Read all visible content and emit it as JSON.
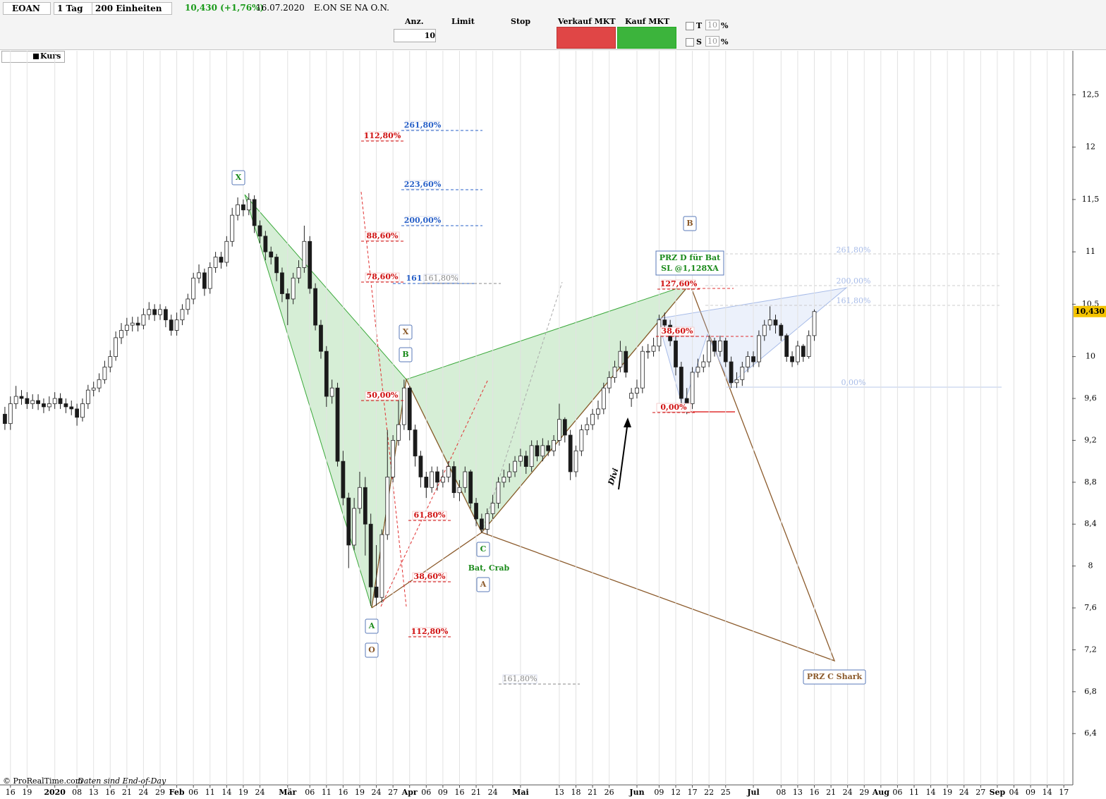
{
  "toolbar": {
    "symbol": "EOAN",
    "interval": "1 Tag",
    "units": "200 Einheiten",
    "quote": "10,430 (+1,76%)",
    "date": "16.07.2020",
    "name": "E.ON SE NA O.N.",
    "qty_label": "Anz.",
    "qty": "10",
    "limit": "Limit",
    "stop": "Stop",
    "sell": "Verkauf MKT",
    "buy": "Kauf MKT",
    "t": "T",
    "s": "S",
    "t_pct": "10",
    "s_pct": "10",
    "pct": "%"
  },
  "legend": "Kurs",
  "footer": {
    "copyright": "© ProRealTime.com",
    "note": "Daten sind End-of-Day"
  },
  "chart_data": {
    "type": "candlestick",
    "categories": [
      null,
      "16",
      null,
      null,
      "19",
      null,
      null,
      null,
      null,
      "2020",
      null,
      null,
      null,
      "08",
      null,
      null,
      "13",
      null,
      null,
      "16",
      null,
      null,
      "21",
      null,
      null,
      "24",
      null,
      null,
      "29",
      null,
      null,
      "Feb",
      null,
      null,
      "06",
      null,
      null,
      "11",
      null,
      null,
      "14",
      null,
      null,
      "19",
      null,
      null,
      "24",
      null,
      null,
      null,
      null,
      "Mär",
      null,
      null,
      null,
      "06",
      null,
      null,
      "11",
      null,
      null,
      "16",
      null,
      null,
      "19",
      null,
      null,
      "24",
      null,
      null,
      "27",
      null,
      null,
      "Apr",
      null,
      null,
      "06",
      null,
      null,
      "09",
      null,
      null,
      "16",
      null,
      null,
      "21",
      null,
      null,
      "24",
      null,
      null,
      null,
      null,
      "Mai",
      null,
      null,
      null,
      null,
      null,
      null,
      "13",
      null,
      null,
      "18",
      null,
      null,
      "21",
      null,
      null,
      "26",
      null,
      null,
      null,
      null,
      "Jun",
      null,
      null,
      null,
      "09",
      null,
      null,
      "12",
      null,
      null,
      "17",
      null,
      null,
      "22",
      null,
      null,
      "25",
      null,
      null,
      null,
      null,
      "Jul",
      null,
      null,
      null,
      null,
      "08",
      null,
      null,
      "13",
      null,
      null,
      "16",
      null,
      null,
      "21",
      null,
      null,
      "24",
      null,
      null,
      "29",
      null,
      null,
      "Aug",
      null,
      null,
      "06",
      null,
      null,
      "11",
      null,
      null,
      "14",
      null,
      null,
      "19",
      null,
      null,
      "24",
      null,
      null,
      "27",
      null,
      null,
      "Sep",
      null,
      null,
      "04",
      null,
      null,
      "09",
      null,
      null,
      "14",
      null,
      null,
      "17",
      null
    ],
    "open": [
      9.45,
      9.36,
      9.55,
      9.62,
      9.6,
      9.55,
      9.58,
      9.55,
      9.52,
      9.55,
      9.6,
      9.55,
      9.52,
      9.5,
      9.42,
      9.55,
      9.68,
      9.7,
      9.78,
      9.9,
      10.0,
      10.18,
      10.25,
      10.3,
      10.32,
      10.3,
      10.4,
      10.45,
      10.4,
      10.45,
      10.35,
      10.25,
      10.35,
      10.45,
      10.55,
      10.75,
      10.8,
      10.65,
      10.85,
      10.95,
      10.9,
      11.1,
      11.35,
      11.45,
      11.4,
      11.5,
      11.25,
      11.15,
      11.0,
      10.95,
      10.8,
      10.6,
      10.55,
      10.75,
      10.85,
      11.1,
      10.65,
      10.3,
      10.05,
      9.62,
      9.7,
      9.0,
      8.65,
      8.2,
      8.55,
      8.75,
      8.4,
      7.8,
      7.7,
      8.3,
      8.85,
      9.2,
      9.35,
      9.7,
      9.3,
      9.05,
      8.85,
      8.75,
      8.9,
      8.8,
      8.85,
      8.95,
      8.7,
      8.75,
      8.9,
      8.6,
      8.45,
      8.35,
      8.5,
      8.6,
      8.8,
      8.85,
      8.9,
      9.0,
      9.05,
      8.95,
      9.15,
      9.05,
      9.15,
      9.1,
      9.2,
      9.4,
      9.25,
      8.9,
      9.1,
      9.3,
      9.35,
      9.45,
      9.5,
      9.7,
      9.8,
      9.9,
      10.05,
      9.6,
      9.65,
      9.7,
      10.05,
      10.05,
      10.1,
      10.35,
      10.3,
      10.15,
      9.9,
      9.6,
      9.55,
      9.85,
      9.9,
      9.95,
      10.15,
      10.05,
      10.15,
      9.95,
      9.75,
      9.78,
      9.9,
      10.0,
      9.95,
      10.2,
      10.3,
      10.35,
      10.3,
      10.2,
      10.0,
      9.95,
      10.1,
      10.0,
      10.2,
      null,
      null,
      null,
      null,
      null,
      null,
      null,
      null,
      null,
      null,
      null,
      null,
      null,
      null,
      null,
      null,
      null,
      null,
      null,
      null,
      null,
      null,
      null,
      null,
      null,
      null,
      null,
      null,
      null,
      null,
      null,
      null,
      null,
      null,
      null,
      null,
      null,
      null,
      null,
      null,
      null,
      null,
      null,
      null,
      null,
      null
    ],
    "high": [
      9.52,
      9.62,
      9.72,
      9.68,
      9.66,
      9.64,
      9.64,
      9.6,
      9.62,
      9.66,
      9.65,
      9.6,
      9.58,
      9.55,
      9.6,
      9.73,
      9.76,
      9.84,
      9.96,
      10.06,
      10.24,
      10.32,
      10.37,
      10.38,
      10.38,
      10.46,
      10.52,
      10.5,
      10.5,
      10.48,
      10.4,
      10.42,
      10.5,
      10.6,
      10.8,
      10.88,
      10.84,
      10.9,
      11.0,
      11.0,
      11.15,
      11.42,
      11.52,
      11.5,
      11.56,
      11.54,
      11.3,
      11.2,
      11.05,
      10.98,
      10.85,
      10.65,
      10.8,
      10.92,
      11.25,
      11.15,
      10.7,
      10.35,
      10.1,
      9.78,
      9.75,
      9.1,
      8.7,
      8.65,
      8.9,
      8.85,
      8.5,
      8.2,
      8.35,
      9.3,
      9.25,
      9.6,
      9.78,
      9.72,
      9.35,
      9.1,
      8.9,
      8.95,
      8.95,
      8.92,
      9.0,
      9.0,
      8.82,
      8.95,
      8.92,
      8.65,
      8.5,
      8.55,
      8.68,
      8.85,
      8.92,
      8.98,
      9.05,
      9.12,
      9.1,
      9.2,
      9.2,
      9.22,
      9.2,
      9.25,
      9.55,
      9.42,
      9.3,
      9.15,
      9.35,
      9.42,
      9.5,
      9.58,
      9.75,
      9.86,
      9.96,
      10.15,
      10.1,
      9.7,
      9.78,
      10.1,
      10.12,
      10.18,
      10.4,
      10.42,
      10.35,
      10.2,
      9.95,
      9.7,
      9.9,
      9.98,
      10.02,
      10.2,
      10.18,
      10.2,
      10.18,
      10.0,
      9.85,
      9.95,
      10.05,
      10.05,
      10.25,
      10.35,
      10.48,
      10.4,
      10.32,
      10.22,
      10.05,
      10.15,
      10.12,
      10.25,
      10.45,
      null,
      null,
      null,
      null,
      null,
      null,
      null,
      null,
      null,
      null,
      null,
      null,
      null,
      null,
      null,
      null,
      null,
      null,
      null,
      null,
      null,
      null,
      null,
      null,
      null,
      null,
      null,
      null,
      null,
      null,
      null,
      null,
      null,
      null,
      null,
      null,
      null,
      null,
      null,
      null,
      null,
      null,
      null,
      null,
      null,
      null
    ],
    "low": [
      9.3,
      9.3,
      9.5,
      9.54,
      9.5,
      9.5,
      9.49,
      9.46,
      9.48,
      9.5,
      9.5,
      9.46,
      9.44,
      9.34,
      9.38,
      9.5,
      9.62,
      9.66,
      9.74,
      9.85,
      9.96,
      10.12,
      10.2,
      10.24,
      10.24,
      10.26,
      10.35,
      10.34,
      10.35,
      10.28,
      10.2,
      10.2,
      10.3,
      10.4,
      10.5,
      10.7,
      10.58,
      10.6,
      10.8,
      10.84,
      10.86,
      11.05,
      11.3,
      11.34,
      11.35,
      11.18,
      11.08,
      10.92,
      10.88,
      10.72,
      10.52,
      10.3,
      10.5,
      10.7,
      10.8,
      10.6,
      10.25,
      9.98,
      9.52,
      9.55,
      8.95,
      8.58,
      7.98,
      8.15,
      8.5,
      8.1,
      7.62,
      7.62,
      7.65,
      8.25,
      8.8,
      9.15,
      9.3,
      9.2,
      8.95,
      8.75,
      8.65,
      8.7,
      8.72,
      8.75,
      8.8,
      8.65,
      8.62,
      8.7,
      8.55,
      8.38,
      8.32,
      8.3,
      8.45,
      8.55,
      8.75,
      8.8,
      8.85,
      8.95,
      8.88,
      8.9,
      9.0,
      9.0,
      9.05,
      9.05,
      9.15,
      9.18,
      8.82,
      8.85,
      9.05,
      9.25,
      9.3,
      9.4,
      9.45,
      9.65,
      9.75,
      9.85,
      9.8,
      9.52,
      9.6,
      9.65,
      9.98,
      10.0,
      10.05,
      10.22,
      10.1,
      9.82,
      9.52,
      9.45,
      9.5,
      9.8,
      9.85,
      9.9,
      10.0,
      10.0,
      9.9,
      9.7,
      9.7,
      9.72,
      9.85,
      9.9,
      9.9,
      10.15,
      10.25,
      10.22,
      10.15,
      9.95,
      9.9,
      9.92,
      9.95,
      9.98,
      10.15,
      null,
      null,
      null,
      null,
      null,
      null,
      null,
      null,
      null,
      null,
      null,
      null,
      null,
      null,
      null,
      null,
      null,
      null,
      null,
      null,
      null,
      null,
      null,
      null,
      null,
      null,
      null,
      null,
      null,
      null,
      null,
      null,
      null,
      null,
      null,
      null,
      null,
      null,
      null,
      null,
      null,
      null,
      null,
      null,
      null,
      null
    ],
    "close": [
      9.36,
      9.55,
      9.62,
      9.6,
      9.55,
      9.58,
      9.55,
      9.52,
      9.55,
      9.6,
      9.55,
      9.52,
      9.5,
      9.42,
      9.55,
      9.68,
      9.7,
      9.78,
      9.9,
      10.0,
      10.18,
      10.25,
      10.3,
      10.32,
      10.3,
      10.4,
      10.45,
      10.4,
      10.45,
      10.35,
      10.25,
      10.35,
      10.45,
      10.55,
      10.75,
      10.8,
      10.65,
      10.85,
      10.95,
      10.9,
      11.1,
      11.35,
      11.45,
      11.4,
      11.5,
      11.25,
      11.15,
      11.0,
      10.95,
      10.8,
      10.6,
      10.55,
      10.75,
      10.85,
      11.1,
      10.65,
      10.3,
      10.05,
      9.62,
      9.7,
      9.0,
      8.65,
      8.2,
      8.55,
      8.75,
      8.4,
      7.8,
      7.7,
      8.3,
      8.85,
      9.2,
      9.35,
      9.7,
      9.3,
      9.05,
      8.85,
      8.75,
      8.9,
      8.8,
      8.85,
      8.95,
      8.7,
      8.75,
      8.9,
      8.6,
      8.45,
      8.35,
      8.5,
      8.6,
      8.8,
      8.85,
      8.9,
      9.0,
      9.05,
      8.95,
      9.15,
      9.05,
      9.15,
      9.1,
      9.2,
      9.4,
      9.25,
      8.9,
      9.1,
      9.3,
      9.35,
      9.45,
      9.5,
      9.7,
      9.8,
      9.9,
      10.05,
      9.85,
      9.65,
      9.7,
      10.05,
      10.05,
      10.1,
      10.35,
      10.3,
      10.15,
      9.9,
      9.6,
      9.55,
      9.85,
      9.9,
      9.95,
      10.15,
      10.05,
      10.15,
      9.95,
      9.75,
      9.78,
      9.9,
      10.0,
      9.95,
      10.2,
      10.3,
      10.35,
      10.3,
      10.2,
      10.0,
      9.95,
      10.1,
      10.0,
      10.2,
      10.43,
      null,
      null,
      null,
      null,
      null,
      null,
      null,
      null,
      null,
      null,
      null,
      null,
      null,
      null,
      null,
      null,
      null,
      null,
      null,
      null,
      null,
      null,
      null,
      null,
      null,
      null,
      null,
      null,
      null,
      null,
      null,
      null,
      null,
      null,
      null,
      null,
      null,
      null,
      null,
      null,
      null,
      null,
      null,
      null,
      null,
      null
    ],
    "up_color": "#ffffff",
    "down_color": "#1a1a1a",
    "x_grid": true,
    "ylim": [
      5.91,
      12.92
    ],
    "yticks": [
      {
        "value": 6.4,
        "label": "6,4"
      },
      {
        "value": 6.8,
        "label": "6,8"
      },
      {
        "value": 7.2,
        "label": "7,2"
      },
      {
        "value": 7.6,
        "label": "7,6"
      },
      8,
      {
        "value": 8.4,
        "label": "8,4"
      },
      {
        "value": 8.8,
        "label": "8,8"
      },
      {
        "value": 9.2,
        "label": "9,2"
      },
      {
        "value": 9.6,
        "label": "9,6"
      },
      10,
      {
        "value": 10.5,
        "label": "10,5"
      },
      11,
      {
        "value": 11.5,
        "label": "11,5"
      },
      12,
      {
        "value": 12.5,
        "label": "12,5"
      }
    ],
    "last": {
      "value": 10.43,
      "label": "10,430"
    },
    "annotations": [
      "X",
      "X",
      "B",
      "B",
      "A",
      "O",
      "C",
      "A",
      "Bat, Crab",
      "PRZ D für Bat",
      "SL @1,128XA",
      "PRZ C Shark",
      "Divi"
    ],
    "fib_labels": [
      "112,80%",
      "88,60%",
      "78,60%",
      "50,00%",
      "61,80%",
      "38,60%",
      "112,80%",
      "127,60%",
      "38,60%",
      "0,00%",
      "261,80%",
      "223,60%",
      "200,00%",
      "161",
      "161,80%",
      "161,80%",
      "261,80%",
      "200,00%",
      "161,80%",
      "0,00%"
    ]
  }
}
